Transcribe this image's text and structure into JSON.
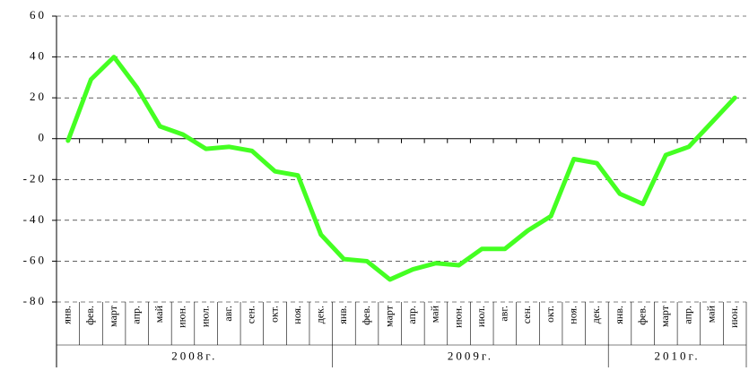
{
  "chart_data": {
    "type": "line",
    "categories": [
      "янв.",
      "фев.",
      "март",
      "апр.",
      "май",
      "июн.",
      "июл.",
      "авг.",
      "сен.",
      "окт.",
      "ноя.",
      "дек.",
      "янв.",
      "фев.",
      "март",
      "апр.",
      "май",
      "июн.",
      "июл.",
      "авг.",
      "сен.",
      "окт.",
      "ноя.",
      "дек.",
      "янв.",
      "фев.",
      "март",
      "апр.",
      "май",
      "июн."
    ],
    "groups": [
      "2008г.",
      "2009г.",
      "2010г."
    ],
    "values": [
      -1,
      29,
      40,
      25,
      6,
      2,
      -5,
      -4,
      -6,
      -16,
      -18,
      -47,
      -59,
      -60,
      -69,
      -64,
      -61,
      -62,
      -54,
      -54,
      -45,
      -38,
      -10,
      -12,
      -27,
      -32,
      -8,
      -4,
      8,
      20
    ],
    "color": "#44ff22",
    "ylim": [
      -80,
      60
    ],
    "yticks": [
      -80,
      -60,
      -40,
      -20,
      0,
      20,
      40,
      60
    ],
    "grid": true
  }
}
